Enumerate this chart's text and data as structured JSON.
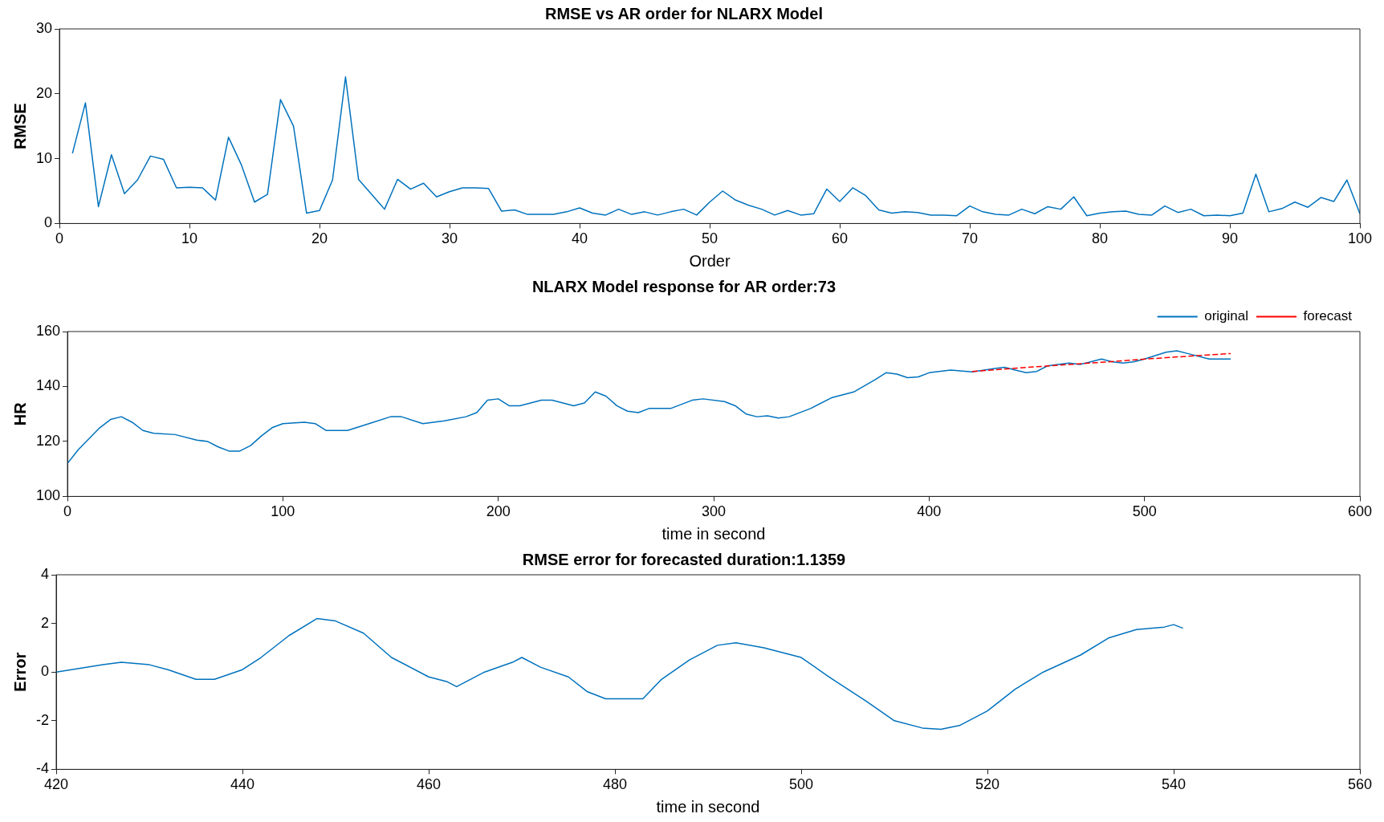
{
  "chart_data": [
    {
      "type": "line",
      "title": "RMSE vs AR order for NLARX Model",
      "xlabel": "Order",
      "ylabel": "RMSE",
      "xlim": [
        0,
        100
      ],
      "xticks": [
        0,
        10,
        20,
        30,
        40,
        50,
        60,
        70,
        80,
        90,
        100
      ],
      "ylim": [
        0,
        30
      ],
      "yticks": [
        0,
        10,
        20,
        30
      ],
      "grid": false,
      "legend": false,
      "series": [
        {
          "color": "#0072bd",
          "x": [
            1,
            2,
            3,
            4,
            5,
            6,
            7,
            8,
            9,
            10,
            11,
            12,
            13,
            14,
            15,
            16,
            17,
            18,
            19,
            20,
            21,
            22,
            23,
            24,
            25,
            26,
            27,
            28,
            29,
            30,
            31,
            32,
            33,
            34,
            35,
            36,
            37,
            38,
            39,
            40,
            41,
            42,
            43,
            44,
            45,
            46,
            47,
            48,
            49,
            50,
            51,
            52,
            53,
            54,
            55,
            56,
            57,
            58,
            59,
            60,
            61,
            62,
            63,
            64,
            65,
            66,
            67,
            68,
            69,
            70,
            71,
            72,
            73,
            74,
            75,
            76,
            77,
            78,
            79,
            80,
            81,
            82,
            83,
            84,
            85,
            86,
            87,
            88,
            89,
            90,
            91,
            92,
            93,
            94,
            95,
            96,
            97,
            98,
            99,
            100
          ],
          "values": [
            10.8,
            18.6,
            2.6,
            10.6,
            4.6,
            6.7,
            10.4,
            9.9,
            5.5,
            5.6,
            5.5,
            3.6,
            13.3,
            9.0,
            3.3,
            4.5,
            19.1,
            15.0,
            1.6,
            2.0,
            6.7,
            22.6,
            6.8,
            4.5,
            2.2,
            6.8,
            5.3,
            6.2,
            4.1,
            4.9,
            5.5,
            5.5,
            5.4,
            1.9,
            2.1,
            1.4,
            1.4,
            1.4,
            1.8,
            2.4,
            1.6,
            1.3,
            2.2,
            1.4,
            1.8,
            1.3,
            1.8,
            2.2,
            1.3,
            3.3,
            5.0,
            3.6,
            2.8,
            2.2,
            1.3,
            2.0,
            1.3,
            1.5,
            5.3,
            3.4,
            5.5,
            4.3,
            2.1,
            1.6,
            1.8,
            1.7,
            1.3,
            1.3,
            1.2,
            2.7,
            1.8,
            1.4,
            1.3,
            2.2,
            1.5,
            2.6,
            2.2,
            4.1,
            1.2,
            1.6,
            1.8,
            1.9,
            1.4,
            1.3,
            2.7,
            1.7,
            2.2,
            1.2,
            1.3,
            1.2,
            1.6,
            7.6,
            1.8,
            2.3,
            3.3,
            2.5,
            4.0,
            3.4,
            6.7,
            1.5
          ]
        }
      ]
    },
    {
      "type": "line",
      "title": "NLARX Model response for AR order:73",
      "xlabel": "time in second",
      "ylabel": "HR",
      "xlim": [
        0,
        600
      ],
      "xticks": [
        0,
        100,
        200,
        300,
        400,
        500,
        600
      ],
      "ylim": [
        100,
        160
      ],
      "yticks": [
        100,
        120,
        140,
        160
      ],
      "grid": false,
      "legend": "top right",
      "series": [
        {
          "name": "original",
          "color": "#0072bd",
          "line_style": "solid",
          "x": [
            0,
            5,
            10,
            15,
            20,
            25,
            30,
            35,
            40,
            50,
            60,
            65,
            70,
            75,
            80,
            85,
            90,
            95,
            100,
            110,
            115,
            120,
            130,
            140,
            150,
            155,
            165,
            175,
            185,
            190,
            195,
            200,
            205,
            210,
            220,
            225,
            235,
            240,
            245,
            250,
            255,
            260,
            265,
            270,
            280,
            290,
            295,
            305,
            310,
            315,
            320,
            325,
            330,
            335,
            345,
            355,
            365,
            375,
            380,
            385,
            390,
            395,
            400,
            410,
            420,
            430,
            435,
            440,
            445,
            450,
            455,
            465,
            470,
            475,
            480,
            485,
            490,
            495,
            500,
            510,
            515,
            520,
            530,
            540
          ],
          "values": [
            112,
            117,
            121,
            125,
            128,
            129,
            127,
            124,
            123,
            122.5,
            120.5,
            120,
            118,
            116.5,
            116.5,
            118.5,
            122,
            125,
            126.5,
            127,
            126.5,
            124,
            124,
            126.5,
            129,
            129,
            126.5,
            127.5,
            129,
            130.5,
            135,
            135.5,
            133,
            133,
            135,
            135,
            133,
            134,
            138,
            136.5,
            133,
            131,
            130.5,
            132,
            132,
            135,
            135.5,
            134.5,
            133,
            130,
            129,
            129.3,
            128.5,
            129,
            132,
            136,
            138,
            142.5,
            145,
            144.5,
            143.2,
            143.5,
            145,
            146,
            145.3,
            146.5,
            147,
            146,
            145,
            145.5,
            147.5,
            148.5,
            148,
            149,
            150,
            149,
            148.5,
            149,
            150,
            152.5,
            153,
            152,
            150,
            150
          ]
        },
        {
          "name": "forecast",
          "color": "#ff0000",
          "line_style": "dashed",
          "x": [
            420,
            450,
            480,
            510,
            540
          ],
          "values": [
            145.5,
            147.2,
            148.8,
            150.5,
            152
          ]
        }
      ]
    },
    {
      "type": "line",
      "title": "RMSE error for forecasted duration:1.1359",
      "xlabel": "time in second",
      "ylabel": "Error",
      "xlim": [
        420,
        560
      ],
      "xticks": [
        420,
        440,
        460,
        480,
        500,
        520,
        540,
        560
      ],
      "ylim": [
        -4,
        4
      ],
      "yticks": [
        -4,
        -2,
        0,
        2,
        4
      ],
      "grid": false,
      "legend": false,
      "series": [
        {
          "color": "#0072bd",
          "x": [
            420,
            425,
            427,
            430,
            432,
            435,
            437,
            440,
            442,
            445,
            448,
            450,
            453,
            456,
            460,
            462,
            463,
            466,
            469,
            470,
            472,
            475,
            477,
            479,
            483,
            485,
            488,
            491,
            493,
            496,
            500,
            503,
            507,
            510,
            513,
            515,
            517,
            520,
            523,
            526,
            530,
            533,
            536,
            539,
            540,
            541
          ],
          "values": [
            0,
            0.3,
            0.4,
            0.3,
            0.1,
            -0.3,
            -0.3,
            0.1,
            0.6,
            1.5,
            2.2,
            2.1,
            1.6,
            0.6,
            -0.2,
            -0.4,
            -0.6,
            0,
            0.4,
            0.6,
            0.2,
            -0.2,
            -0.8,
            -1.1,
            -1.1,
            -0.3,
            0.5,
            1.1,
            1.2,
            1.0,
            0.6,
            -0.2,
            -1.2,
            -2.0,
            -2.3,
            -2.35,
            -2.2,
            -1.6,
            -0.7,
            0,
            0.7,
            1.4,
            1.75,
            1.85,
            1.95,
            1.8
          ]
        }
      ]
    }
  ]
}
